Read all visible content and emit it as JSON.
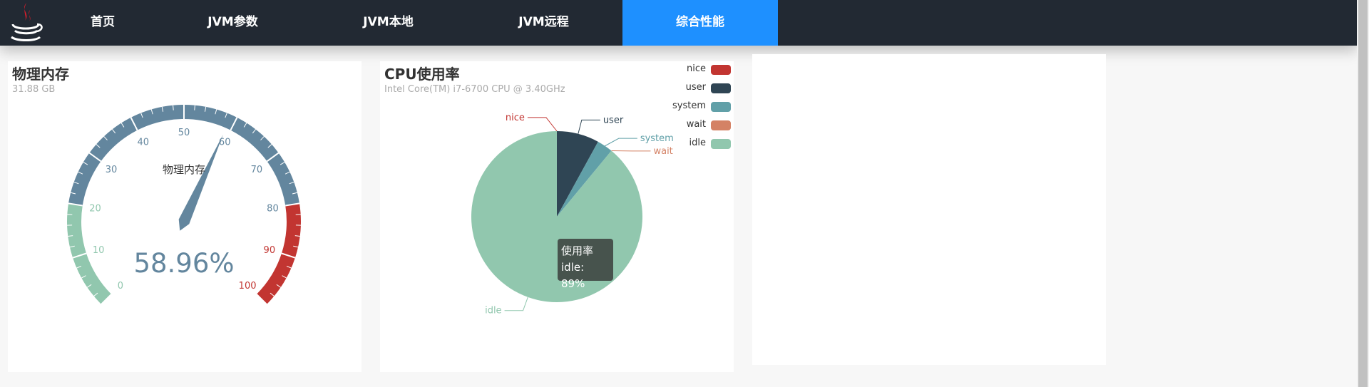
{
  "nav": {
    "items": [
      {
        "label": "首页"
      },
      {
        "label": "JVM参数"
      },
      {
        "label": "JVM本地"
      },
      {
        "label": "JVM远程"
      },
      {
        "label": "综合性能"
      }
    ],
    "active_index": 4
  },
  "memory": {
    "title": "物理内存",
    "subtitle": "31.88 GB",
    "gauge_name": "物理内存",
    "value_text": "58.96%"
  },
  "cpu": {
    "title": "CPU使用率",
    "subtitle": "Intel Core(TM) i7-6700 CPU @ 3.40GHz",
    "tooltip": {
      "series": "使用率",
      "text": "idle: 89%"
    }
  },
  "chart_data": [
    {
      "type": "gauge",
      "title": "物理内存",
      "subtitle": "31.88 GB",
      "value": 58.96,
      "min": 0,
      "max": 100,
      "ticks": [
        0,
        10,
        20,
        30,
        40,
        50,
        60,
        70,
        80,
        90,
        100
      ],
      "bands": [
        {
          "to": 0.2,
          "color": "#91c7ae"
        },
        {
          "to": 0.8,
          "color": "#63869e"
        },
        {
          "to": 1.0,
          "color": "#c23531"
        }
      ]
    },
    {
      "type": "pie",
      "title": "CPU使用率",
      "subtitle": "Intel Core(TM) i7-6700 CPU @ 3.40GHz",
      "series_name": "使用率",
      "slices": [
        {
          "name": "nice",
          "value": 0,
          "color": "#c23531"
        },
        {
          "name": "user",
          "value": 8,
          "color": "#2f4554"
        },
        {
          "name": "system",
          "value": 3,
          "color": "#61a0a8"
        },
        {
          "name": "wait",
          "value": 0,
          "color": "#d48265"
        },
        {
          "name": "idle",
          "value": 89,
          "color": "#91c7ae"
        }
      ],
      "legend_position": "top-right"
    }
  ]
}
